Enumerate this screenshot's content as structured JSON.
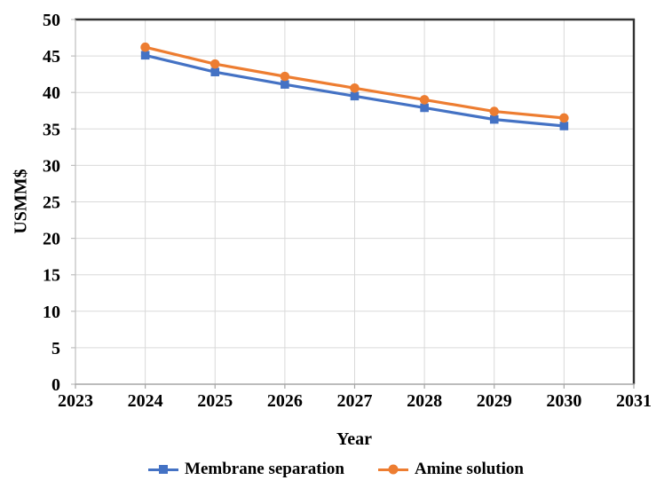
{
  "chart_data": {
    "type": "line",
    "title": "",
    "xlabel": "Year",
    "ylabel": "USMM$",
    "x": [
      2024,
      2025,
      2026,
      2027,
      2028,
      2029,
      2030
    ],
    "series": [
      {
        "name": "Membrane separation",
        "color": "#4472C4",
        "marker": "square",
        "values": [
          45.1,
          42.8,
          41.1,
          39.5,
          37.9,
          36.3,
          35.4
        ]
      },
      {
        "name": "Amine solution",
        "color": "#ED7D31",
        "marker": "circle",
        "values": [
          46.2,
          43.9,
          42.2,
          40.6,
          39.0,
          37.4,
          36.5
        ]
      }
    ],
    "x_ticks": [
      2023,
      2024,
      2025,
      2026,
      2027,
      2028,
      2029,
      2030,
      2031
    ],
    "y_ticks": [
      0,
      5,
      10,
      15,
      20,
      25,
      30,
      35,
      40,
      45,
      50
    ],
    "xlim": [
      2023,
      2031
    ],
    "ylim": [
      0,
      50
    ],
    "grid": true,
    "legend_position": "bottom",
    "colors": {
      "gridline": "#D9D9D9",
      "plot_border_dark": "#333333",
      "axis_line": "#A6A6A6",
      "text": "#000000"
    }
  }
}
